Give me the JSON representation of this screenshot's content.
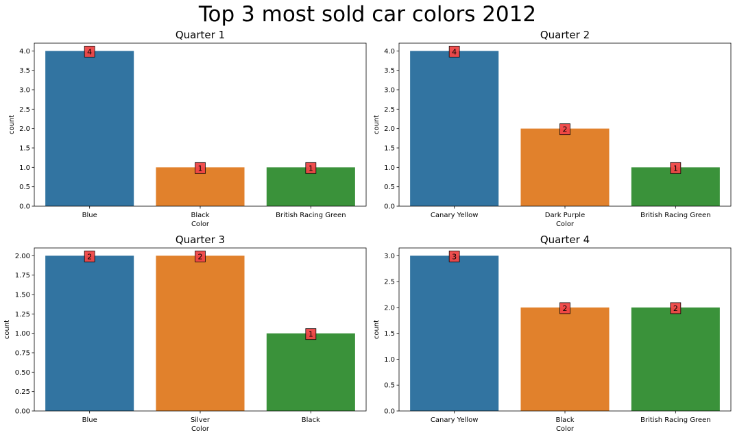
{
  "title": "Top 3 most sold car colors 2012",
  "colors": {
    "first": "#3274a1",
    "second": "#e1812c",
    "third": "#3a923a",
    "label_box": "#f04646"
  },
  "chart_data": [
    {
      "type": "bar",
      "title": "Quarter 1",
      "xlabel": "Color",
      "ylabel": "count",
      "categories": [
        "Blue",
        "Black",
        "British Racing Green"
      ],
      "values": [
        4,
        1,
        1
      ],
      "ylim": [
        0,
        4.2
      ],
      "yticks": [
        "0.0",
        "0.5",
        "1.0",
        "1.5",
        "2.0",
        "2.5",
        "3.0",
        "3.5",
        "4.0"
      ],
      "grid": false
    },
    {
      "type": "bar",
      "title": "Quarter 2",
      "xlabel": "Color",
      "ylabel": "count",
      "categories": [
        "Canary Yellow",
        "Dark Purple",
        "British Racing Green"
      ],
      "values": [
        4,
        2,
        1
      ],
      "ylim": [
        0,
        4.2
      ],
      "yticks": [
        "0.0",
        "0.5",
        "1.0",
        "1.5",
        "2.0",
        "2.5",
        "3.0",
        "3.5",
        "4.0"
      ],
      "grid": false
    },
    {
      "type": "bar",
      "title": "Quarter 3",
      "xlabel": "Color",
      "ylabel": "count",
      "categories": [
        "Blue",
        "Silver",
        "Black"
      ],
      "values": [
        2,
        2,
        1
      ],
      "ylim": [
        0,
        2.1
      ],
      "yticks": [
        "0.00",
        "0.25",
        "0.50",
        "0.75",
        "1.00",
        "1.25",
        "1.50",
        "1.75",
        "2.00"
      ],
      "grid": false
    },
    {
      "type": "bar",
      "title": "Quarter 4",
      "xlabel": "Color",
      "ylabel": "count",
      "categories": [
        "Canary Yellow",
        "Black",
        "British Racing Green"
      ],
      "values": [
        3,
        2,
        2
      ],
      "ylim": [
        0,
        3.15
      ],
      "yticks": [
        "0.0",
        "0.5",
        "1.0",
        "1.5",
        "2.0",
        "2.5",
        "3.0"
      ],
      "grid": false
    }
  ]
}
